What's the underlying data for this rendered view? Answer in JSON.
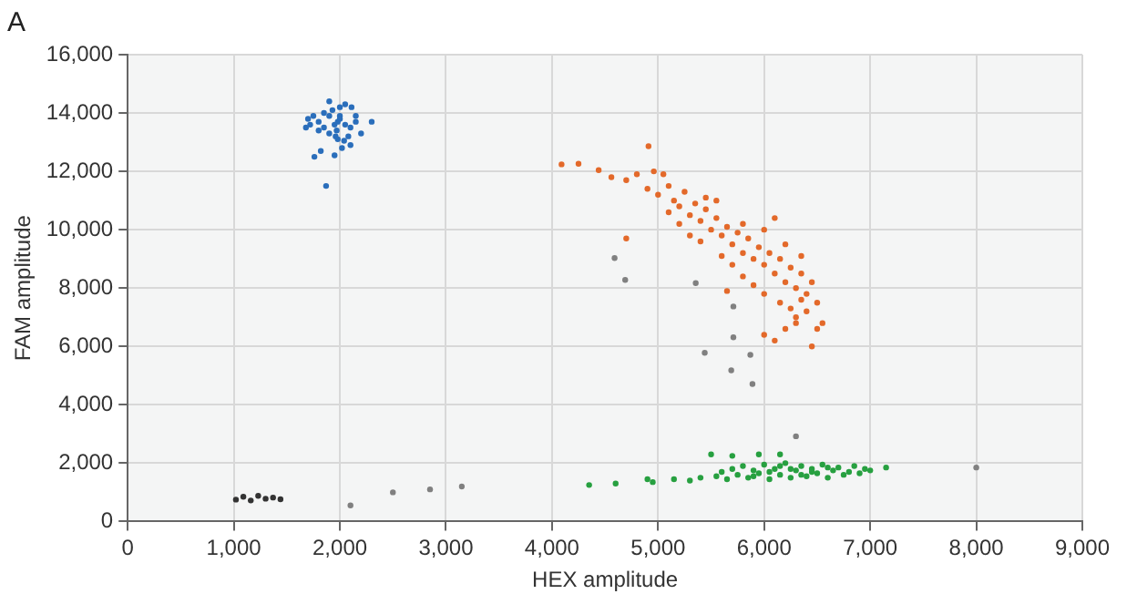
{
  "chart_data": {
    "type": "scatter",
    "title": "A",
    "xlabel": "HEX amplitude",
    "ylabel": "FAM amplitude",
    "xlim": [
      0,
      9000
    ],
    "xticks": [
      {
        "value": 0,
        "label": "0"
      },
      {
        "value": 1000,
        "label": "1,000"
      },
      {
        "value": 2000,
        "label": "2,000"
      },
      {
        "value": 3000,
        "label": "3,000"
      },
      {
        "value": 4000,
        "label": "4,000"
      },
      {
        "value": 5000,
        "label": "5,000"
      },
      {
        "value": 6000,
        "label": "6,000"
      },
      {
        "value": 7000,
        "label": "7,000"
      },
      {
        "value": 8000,
        "label": "8,000"
      },
      {
        "value": 9000,
        "label": "9,000"
      }
    ],
    "ylim": [
      0,
      16000
    ],
    "yticks": [
      {
        "value": 0,
        "label": "0"
      },
      {
        "value": 2000,
        "label": "2,000"
      },
      {
        "value": 4000,
        "label": "4,000"
      },
      {
        "value": 6000,
        "label": "6,000"
      },
      {
        "value": 8000,
        "label": "8,000"
      },
      {
        "value": 10000,
        "label": "10,000"
      },
      {
        "value": 12000,
        "label": "12,000"
      },
      {
        "value": 14000,
        "label": "14,000"
      },
      {
        "value": 16000,
        "label": "16,000"
      }
    ],
    "grid": true,
    "marker": "circle",
    "series": [
      {
        "color": "#2a6ebb",
        "x": [
          1700,
          1750,
          1800,
          1850,
          1900,
          1950,
          2000,
          2050,
          2100,
          2150,
          1900,
          1980,
          2020,
          1820,
          1760,
          1950,
          1870,
          2300,
          2200,
          2080,
          1980,
          2000,
          1930,
          2110,
          1850,
          1720,
          1680,
          1970,
          2050,
          2150,
          2000,
          1900,
          1960,
          2100,
          1800,
          2040
        ],
        "values": [
          13800,
          13900,
          13700,
          14000,
          14400,
          13600,
          13900,
          14300,
          13500,
          13700,
          13300,
          13100,
          12800,
          12700,
          12500,
          12550,
          11500,
          13700,
          13300,
          13200,
          13700,
          13800,
          14100,
          14200,
          13500,
          13600,
          13500,
          13400,
          13600,
          13900,
          14200,
          13900,
          13200,
          12900,
          13400,
          13050
        ]
      },
      {
        "color": "#333333",
        "x": [
          1020,
          1090,
          1160,
          1230,
          1300,
          1370,
          1440
        ],
        "values": [
          750,
          850,
          720,
          880,
          780,
          820,
          760
        ]
      },
      {
        "color": "#808080",
        "x": [
          2100,
          2500,
          2850,
          3150,
          8000,
          4590,
          4690,
          5355,
          5710,
          5710,
          5440,
          5870,
          5690,
          5890,
          6300
        ],
        "values": [
          550,
          1000,
          1100,
          1200,
          1850,
          9030,
          8280,
          8170,
          7370,
          6310,
          5780,
          5710,
          5180,
          4710,
          2920
        ]
      },
      {
        "color": "#27a040",
        "x": [
          4350,
          4600,
          4900,
          4950,
          5150,
          5300,
          5400,
          5500,
          5700,
          5950,
          6150,
          7150,
          5550,
          5600,
          5650,
          5700,
          5750,
          5800,
          5850,
          5900,
          5950,
          6000,
          6050,
          6100,
          6150,
          6200,
          6250,
          6300,
          6350,
          6400,
          6450,
          6500,
          6550,
          6600,
          6650,
          6700,
          6750,
          6800,
          6850,
          6900,
          6950,
          7000,
          6050,
          6250,
          6450,
          6150,
          6350,
          5900,
          6600
        ],
        "values": [
          1250,
          1300,
          1450,
          1350,
          1450,
          1400,
          1500,
          2300,
          2250,
          2300,
          2300,
          1850,
          1550,
          1700,
          1450,
          1800,
          1600,
          1900,
          1500,
          1750,
          1650,
          1950,
          1450,
          1800,
          1600,
          2000,
          1500,
          1750,
          1900,
          1550,
          1800,
          1650,
          1950,
          1500,
          1750,
          1850,
          1600,
          1700,
          1900,
          1650,
          1800,
          1750,
          1700,
          1800,
          1700,
          1900,
          1600,
          1550,
          1850
        ]
      },
      {
        "color": "#e3692a",
        "x": [
          4090,
          4250,
          4440,
          4910,
          4560,
          4700,
          4800,
          4960,
          5050,
          4900,
          5000,
          5100,
          5150,
          5200,
          5250,
          5300,
          5350,
          5400,
          5450,
          5200,
          5100,
          5500,
          5550,
          5600,
          5650,
          5700,
          5750,
          5800,
          5850,
          5900,
          5950,
          6000,
          6050,
          6100,
          6150,
          6200,
          6250,
          6300,
          6350,
          6400,
          6450,
          6500,
          6400,
          6300,
          6200,
          6100,
          6000,
          6500,
          6550,
          6450,
          6300,
          6150,
          6000,
          5900,
          5800,
          5700,
          5600,
          6200,
          6000,
          5800,
          5400,
          5300,
          6350,
          6250,
          5550,
          4700,
          5450,
          6100,
          6350,
          5650
        ],
        "values": [
          12240,
          12260,
          12040,
          12860,
          11800,
          11700,
          11900,
          12000,
          11900,
          11400,
          11200,
          11500,
          11000,
          10800,
          11300,
          10500,
          10900,
          10300,
          10700,
          10200,
          10600,
          10000,
          10400,
          9800,
          10100,
          9500,
          9900,
          9200,
          9700,
          9000,
          9400,
          8800,
          9200,
          8500,
          9000,
          8200,
          8700,
          8000,
          8500,
          7800,
          8200,
          7500,
          7200,
          7000,
          6600,
          6200,
          6400,
          6600,
          6800,
          6000,
          6800,
          7500,
          7800,
          8100,
          8400,
          8800,
          9100,
          9500,
          10000,
          10200,
          9600,
          9800,
          7600,
          7300,
          11000,
          9700,
          11100,
          10400,
          9100,
          7900
        ]
      }
    ]
  }
}
